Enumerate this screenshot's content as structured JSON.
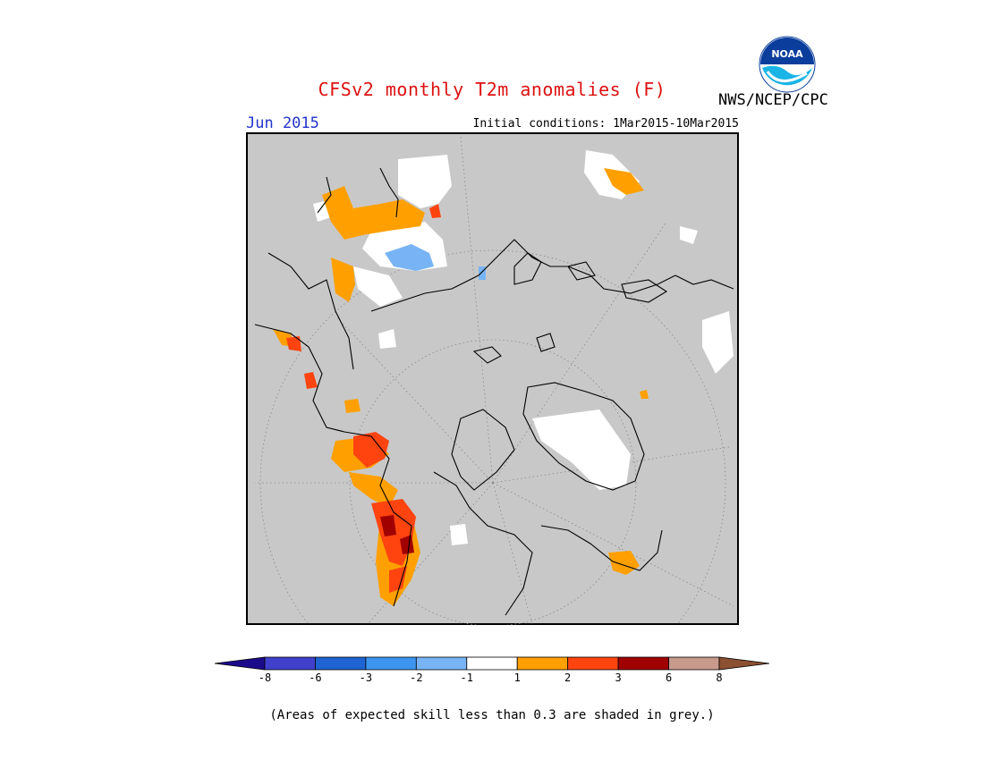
{
  "header": {
    "title": "CFSv2 monthly T2m anomalies (F)",
    "month": "Jun 2015",
    "initial_conditions": "Initial conditions: 1Mar2015-10Mar2015",
    "agency": "NWS/NCEP/CPC",
    "logo_text": "NOAA"
  },
  "colors": {
    "grey_mask": "#c8c8c8",
    "coast": "#000000",
    "title": "#dd1111",
    "month": "#2233cc"
  },
  "legend": {
    "bins": [
      {
        "range": "< -8",
        "color": "#1c0a8c"
      },
      {
        "range": "-8 to -6",
        "color": "#4040cc"
      },
      {
        "range": "-6 to -3",
        "color": "#1e64d2"
      },
      {
        "range": "-3 to -2",
        "color": "#3c96f0"
      },
      {
        "range": "-2 to -1",
        "color": "#78b4f5"
      },
      {
        "range": "-1 to 1",
        "color": "#ffffff"
      },
      {
        "range": "1 to 2",
        "color": "#ffa000"
      },
      {
        "range": "2 to 3",
        "color": "#ff4410"
      },
      {
        "range": "3 to 6",
        "color": "#a00000"
      },
      {
        "range": "6 to 8",
        "color": "#c89a8c"
      },
      {
        "range": "> 8",
        "color": "#8c5032"
      }
    ],
    "tick_labels": [
      "-8",
      "-6",
      "-3",
      "-2",
      "-1",
      "1",
      "2",
      "3",
      "6",
      "8"
    ]
  },
  "footer": {
    "note": "(Areas of expected skill less than 0.3 are shaded in grey.)"
  }
}
